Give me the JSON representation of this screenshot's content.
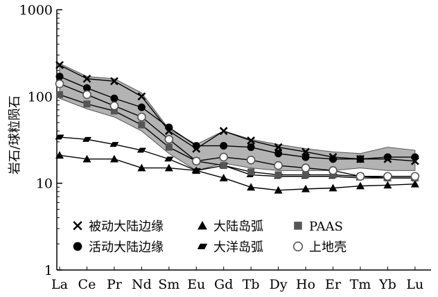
{
  "chart_data": {
    "type": "line",
    "title": "",
    "xlabel": "",
    "ylabel": "岩石/球粒陨石",
    "yscale": "log",
    "ylim": [
      1,
      1000
    ],
    "y_tick_labels": [
      "1",
      "10",
      "100",
      "1000"
    ],
    "categories": [
      "La",
      "Ce",
      "Pr",
      "Nd",
      "Sm",
      "Eu",
      "Gd",
      "Tb",
      "Dy",
      "Ho",
      "Er",
      "Tm",
      "Yb",
      "Lu"
    ],
    "grid": false,
    "legend_position": "bottom-left",
    "band": {
      "upper": [
        240,
        170,
        160,
        110,
        42,
        28,
        40,
        32,
        28,
        25,
        23,
        22,
        26,
        24
      ],
      "lower": [
        95,
        72,
        58,
        40,
        22,
        14,
        17,
        15,
        14,
        14,
        14,
        15,
        14,
        14
      ],
      "color": "#b3b3b3"
    },
    "series": [
      {
        "name": "被动大陆边缘",
        "marker": "cross",
        "values": [
          230,
          160,
          150,
          100,
          40,
          25,
          40,
          31,
          26,
          23,
          20,
          19,
          19,
          18
        ]
      },
      {
        "name": "活动大陆边缘",
        "marker": "circle-filled",
        "values": [
          170,
          125,
          95,
          75,
          44,
          27,
          27,
          26,
          22,
          20,
          19,
          19,
          20,
          20
        ]
      },
      {
        "name": "大陆岛弧",
        "marker": "triangle",
        "values": [
          21,
          19,
          19,
          15,
          15,
          14,
          11.5,
          9,
          8.3,
          8.6,
          8.8,
          9.3,
          9.5,
          9.8
        ]
      },
      {
        "name": "大洋岛弧",
        "marker": "parallelogram",
        "values": [
          34,
          32,
          28,
          24,
          19,
          14,
          16,
          12.5,
          12,
          12,
          12,
          11.5,
          11.5,
          11.5
        ]
      },
      {
        "name": "PAAS",
        "marker": "square",
        "values": [
          105,
          82,
          68,
          47,
          26,
          18,
          16,
          13.5,
          12.5,
          12.5,
          12.5,
          12,
          11.5,
          11.5
        ]
      },
      {
        "name": "上地壳",
        "marker": "circle-open",
        "values": [
          140,
          105,
          78,
          58,
          32,
          18,
          20,
          18.5,
          16,
          15,
          14,
          12,
          12,
          12
        ]
      }
    ]
  }
}
